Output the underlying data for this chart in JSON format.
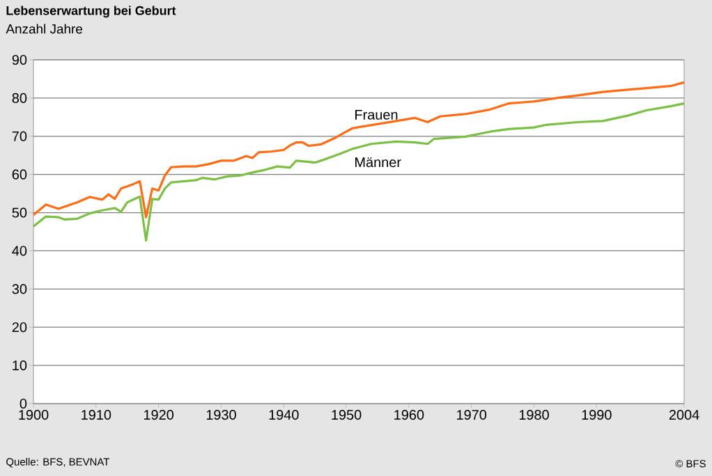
{
  "chart_data": {
    "type": "line",
    "title": "Lebenserwartung bei Geburt",
    "ylabel": "Anzahl Jahre",
    "annotations": [
      "Quelle: BFS, BEVNAT",
      "© BFS"
    ],
    "xlim": [
      1900,
      2004
    ],
    "xticks": [
      1900,
      1910,
      1920,
      1930,
      1940,
      1950,
      1960,
      1970,
      1980,
      1990,
      2004
    ],
    "ylim": [
      0,
      90
    ],
    "yticks": [
      0,
      10,
      20,
      30,
      40,
      50,
      60,
      70,
      80,
      90
    ],
    "grid": "y",
    "marker": "none",
    "line_style": "solid",
    "series": [
      {
        "name": "Frauen",
        "color": "#ff6a13",
        "x": [
          1900,
          1902,
          1904,
          1907,
          1909,
          1911,
          1912,
          1913,
          1914,
          1916,
          1917,
          1918,
          1919,
          1920,
          1921,
          1922,
          1924,
          1926,
          1928,
          1930,
          1932,
          1934,
          1935,
          1936,
          1938,
          1940,
          1941,
          1942,
          1943,
          1944,
          1946,
          1948,
          1950,
          1951,
          1958,
          1961,
          1963,
          1965,
          1969,
          1973,
          1976,
          1980,
          1984,
          1987,
          1991,
          1995,
          1998,
          2002,
          2004
        ],
        "values": [
          49.4,
          52.1,
          51,
          52.7,
          54.1,
          53.4,
          54.8,
          53.6,
          56.3,
          57.5,
          58.2,
          48.8,
          56.3,
          55.8,
          59.7,
          61.9,
          62.1,
          62.1,
          62.7,
          63.6,
          63.6,
          64.8,
          64.3,
          65.8,
          66,
          66.4,
          67.6,
          68.4,
          68.4,
          67.5,
          67.9,
          69.4,
          71.2,
          72.1,
          74,
          74.8,
          73.7,
          75.2,
          75.8,
          77,
          78.6,
          79.1,
          80.1,
          80.7,
          81.6,
          82.2,
          82.6,
          83.2,
          84.1
        ]
      },
      {
        "name": "Männer",
        "color": "#7ac143",
        "x": [
          1900,
          1902,
          1904,
          1905,
          1907,
          1909,
          1911,
          1913,
          1914,
          1915,
          1917,
          1918,
          1919,
          1920,
          1921,
          1922,
          1924,
          1926,
          1927,
          1929,
          1931,
          1933,
          1935,
          1937,
          1939,
          1941,
          1942,
          1944,
          1945,
          1947,
          1949,
          1951,
          1954,
          1958,
          1961,
          1963,
          1964,
          1969,
          1973,
          1976,
          1980,
          1982,
          1987,
          1991,
          1995,
          1998,
          2002,
          2004
        ],
        "values": [
          46.4,
          49,
          48.8,
          48.2,
          48.4,
          49.8,
          50.6,
          51.2,
          50.2,
          52.7,
          54.2,
          42.7,
          53.6,
          53.4,
          56.3,
          57.9,
          58.2,
          58.5,
          59.1,
          58.7,
          59.5,
          59.7,
          60.5,
          61.2,
          62.1,
          61.8,
          63.6,
          63.3,
          63.1,
          64.2,
          65.4,
          66.7,
          68,
          68.6,
          68.4,
          68,
          69.3,
          69.9,
          71.2,
          71.9,
          72.3,
          73,
          73.7,
          74,
          75.4,
          76.8,
          77.9,
          78.6
        ]
      }
    ]
  }
}
